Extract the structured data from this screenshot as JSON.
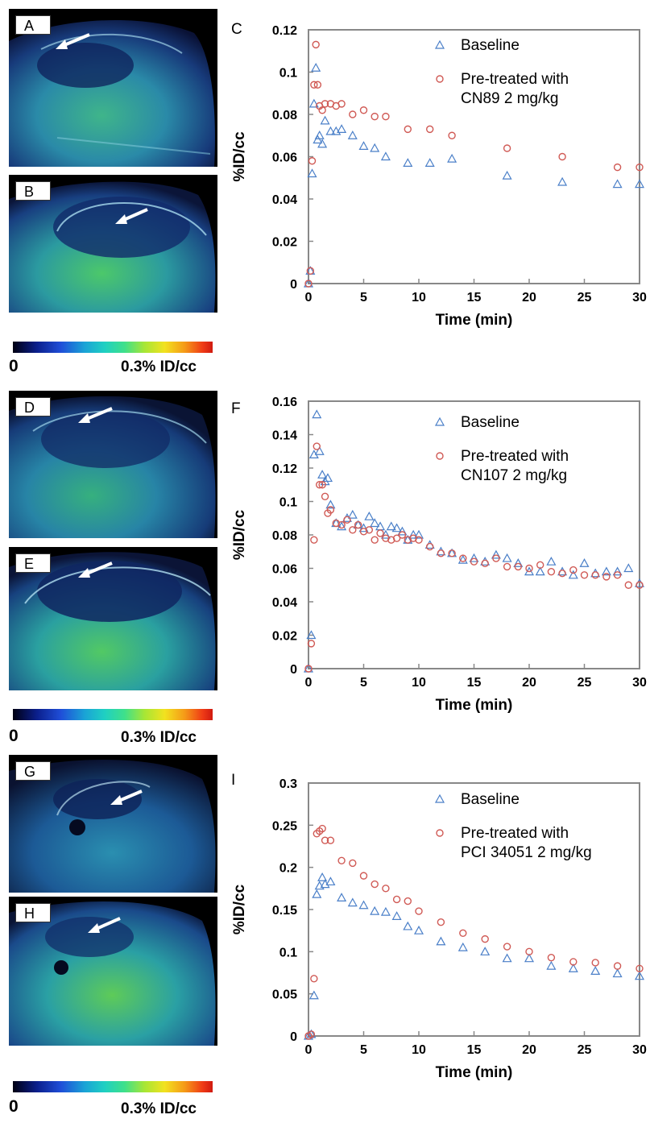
{
  "panels": {
    "images": [
      {
        "label": "A"
      },
      {
        "label": "B"
      },
      {
        "label": "D"
      },
      {
        "label": "E"
      },
      {
        "label": "G"
      },
      {
        "label": "H"
      }
    ],
    "colorbars": [
      {
        "min": "0",
        "max": "0.3% ID/cc"
      },
      {
        "min": "0",
        "max": "0.3% ID/cc"
      },
      {
        "min": "0",
        "max": "0.3% ID/cc"
      }
    ]
  },
  "colors": {
    "baseline": "#4a7fc8",
    "pretreated": "#d05a55"
  },
  "chart_data": [
    {
      "type": "scatter",
      "panel": "C",
      "xlabel": "Time (min)",
      "ylabel": "%ID/cc",
      "xlim": [
        0,
        30
      ],
      "ylim": [
        0,
        0.12
      ],
      "xticks": [
        0,
        5,
        10,
        15,
        20,
        25,
        30
      ],
      "yticks": [
        0,
        0.02,
        0.04,
        0.06,
        0.08,
        0.1,
        0.12
      ],
      "ytick_labels": [
        "0",
        "0.02",
        "0.04",
        "0.06",
        "0.08",
        "0.1",
        "0.12"
      ],
      "legend_position": "top-right",
      "series": [
        {
          "name": "Baseline",
          "marker": "triangle",
          "color": "#4a7fc8",
          "x": [
            0,
            0.17,
            0.33,
            0.5,
            0.67,
            0.83,
            1,
            1.25,
            1.5,
            2,
            2.5,
            3,
            4,
            5,
            6,
            7,
            9,
            11,
            13,
            18,
            23,
            28,
            30
          ],
          "y": [
            0,
            0.006,
            0.052,
            0.085,
            0.102,
            0.068,
            0.07,
            0.066,
            0.077,
            0.072,
            0.072,
            0.073,
            0.07,
            0.065,
            0.064,
            0.06,
            0.057,
            0.057,
            0.059,
            0.051,
            0.048,
            0.047,
            0.047
          ]
        },
        {
          "name": "Pre-treated with\nCN89 2 mg/kg",
          "marker": "circle",
          "color": "#d05a55",
          "x": [
            0,
            0.17,
            0.33,
            0.5,
            0.67,
            0.83,
            1,
            1.25,
            1.5,
            2,
            2.5,
            3,
            4,
            5,
            6,
            7,
            9,
            11,
            13,
            18,
            23,
            28,
            30
          ],
          "y": [
            0,
            0.006,
            0.058,
            0.094,
            0.113,
            0.094,
            0.084,
            0.082,
            0.085,
            0.085,
            0.084,
            0.085,
            0.08,
            0.082,
            0.079,
            0.079,
            0.073,
            0.073,
            0.07,
            0.064,
            0.06,
            0.055,
            0.055
          ]
        }
      ]
    },
    {
      "type": "scatter",
      "panel": "F",
      "xlabel": "Time (min)",
      "ylabel": "%ID/cc",
      "xlim": [
        0,
        30
      ],
      "ylim": [
        0,
        0.16
      ],
      "xticks": [
        0,
        5,
        10,
        15,
        20,
        25,
        30
      ],
      "yticks": [
        0,
        0.02,
        0.04,
        0.06,
        0.08,
        0.1,
        0.12,
        0.14,
        0.16
      ],
      "ytick_labels": [
        "0",
        "0.02",
        "0.04",
        "0.06",
        "0.08",
        "0.1",
        "0.12",
        "0.14",
        "0.16"
      ],
      "legend_position": "top-right",
      "series": [
        {
          "name": "Baseline",
          "marker": "triangle",
          "color": "#4a7fc8",
          "x": [
            0,
            0.25,
            0.5,
            0.75,
            1,
            1.25,
            1.5,
            1.75,
            2,
            2.5,
            3,
            3.5,
            4,
            4.5,
            5,
            5.5,
            6,
            6.5,
            7,
            7.5,
            8,
            8.5,
            9,
            9.5,
            10,
            11,
            12,
            13,
            14,
            15,
            16,
            17,
            18,
            19,
            20,
            21,
            22,
            23,
            24,
            25,
            26,
            27,
            28,
            29,
            30
          ],
          "y": [
            0,
            0.02,
            0.128,
            0.152,
            0.13,
            0.116,
            0.112,
            0.114,
            0.098,
            0.087,
            0.085,
            0.09,
            0.092,
            0.086,
            0.084,
            0.091,
            0.087,
            0.085,
            0.08,
            0.085,
            0.084,
            0.082,
            0.077,
            0.08,
            0.08,
            0.074,
            0.07,
            0.069,
            0.065,
            0.066,
            0.064,
            0.068,
            0.066,
            0.063,
            0.058,
            0.058,
            0.064,
            0.058,
            0.056,
            0.063,
            0.057,
            0.058,
            0.058,
            0.06,
            0.051
          ]
        },
        {
          "name": "Pre-treated with\nCN107 2 mg/kg",
          "marker": "circle",
          "color": "#d05a55",
          "x": [
            0,
            0.25,
            0.5,
            0.75,
            1,
            1.25,
            1.5,
            1.75,
            2,
            2.5,
            3,
            3.5,
            4,
            4.5,
            5,
            5.5,
            6,
            6.5,
            7,
            7.5,
            8,
            8.5,
            9,
            9.5,
            10,
            11,
            12,
            13,
            14,
            15,
            16,
            17,
            18,
            19,
            20,
            21,
            22,
            23,
            24,
            25,
            26,
            27,
            28,
            29,
            30
          ],
          "y": [
            0,
            0.015,
            0.077,
            0.133,
            0.11,
            0.11,
            0.103,
            0.093,
            0.095,
            0.087,
            0.086,
            0.089,
            0.083,
            0.086,
            0.082,
            0.083,
            0.077,
            0.081,
            0.078,
            0.077,
            0.078,
            0.08,
            0.077,
            0.078,
            0.077,
            0.073,
            0.069,
            0.069,
            0.066,
            0.064,
            0.063,
            0.066,
            0.061,
            0.061,
            0.06,
            0.062,
            0.058,
            0.057,
            0.059,
            0.056,
            0.056,
            0.055,
            0.056,
            0.05,
            0.05
          ]
        }
      ]
    },
    {
      "type": "scatter",
      "panel": "I",
      "xlabel": "Time (min)",
      "ylabel": "%ID/cc",
      "xlim": [
        0,
        30
      ],
      "ylim": [
        0,
        0.3
      ],
      "xticks": [
        0,
        5,
        10,
        15,
        20,
        25,
        30
      ],
      "yticks": [
        0,
        0.05,
        0.1,
        0.15,
        0.2,
        0.25,
        0.3
      ],
      "ytick_labels": [
        "0",
        "0.05",
        "0.1",
        "0.15",
        "0.2",
        "0.25",
        "0.3"
      ],
      "legend_position": "top-right",
      "series": [
        {
          "name": "Baseline",
          "marker": "triangle",
          "color": "#4a7fc8",
          "x": [
            0,
            0.25,
            0.5,
            0.75,
            1,
            1.25,
            1.5,
            2,
            3,
            4,
            5,
            6,
            7,
            8,
            9,
            10,
            12,
            14,
            16,
            18,
            20,
            22,
            24,
            26,
            28,
            30
          ],
          "y": [
            0,
            0.002,
            0.048,
            0.168,
            0.178,
            0.188,
            0.18,
            0.183,
            0.164,
            0.158,
            0.155,
            0.148,
            0.147,
            0.142,
            0.13,
            0.125,
            0.112,
            0.105,
            0.1,
            0.092,
            0.092,
            0.083,
            0.08,
            0.077,
            0.074,
            0.071
          ]
        },
        {
          "name": "Pre-treated with\nPCI 34051 2 mg/kg",
          "marker": "circle",
          "color": "#d05a55",
          "x": [
            0,
            0.25,
            0.5,
            0.75,
            1,
            1.25,
            1.5,
            2,
            3,
            4,
            5,
            6,
            7,
            8,
            9,
            10,
            12,
            14,
            16,
            18,
            20,
            22,
            24,
            26,
            28,
            30
          ],
          "y": [
            0,
            0.002,
            0.068,
            0.24,
            0.243,
            0.246,
            0.232,
            0.232,
            0.208,
            0.205,
            0.19,
            0.18,
            0.175,
            0.162,
            0.16,
            0.148,
            0.135,
            0.122,
            0.115,
            0.106,
            0.1,
            0.093,
            0.088,
            0.087,
            0.083,
            0.08
          ]
        }
      ]
    }
  ]
}
